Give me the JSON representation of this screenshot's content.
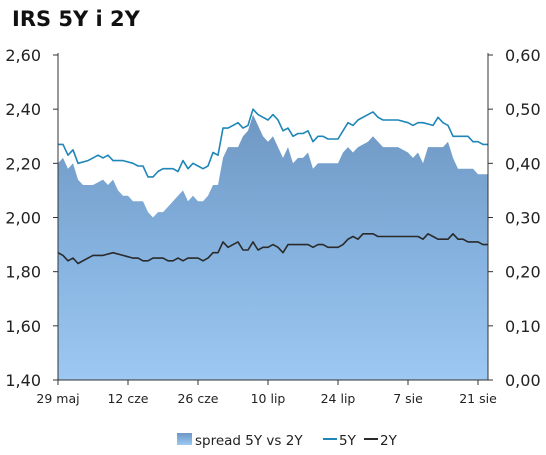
{
  "chart_data": {
    "type": "area",
    "title": "IRS 5Y i 2Y",
    "x_tick_labels": [
      "29 maj",
      "12 cze",
      "26 cze",
      "10 lip",
      "24 lip",
      "7 sie",
      "21 sie"
    ],
    "x_tick_dates": [
      "2013-05-29",
      "2013-06-12",
      "2013-06-26",
      "2013-07-10",
      "2013-07-24",
      "2013-08-07",
      "2013-08-21"
    ],
    "y_left": {
      "ylim": [
        1.4,
        2.6
      ],
      "ticks": [
        "1,40",
        "1,60",
        "1,80",
        "2,00",
        "2,20",
        "2,40",
        "2,60"
      ]
    },
    "y_right": {
      "ylim": [
        0.0,
        0.6
      ],
      "ticks": [
        "0,00",
        "0,10",
        "0,20",
        "0,30",
        "0,40",
        "0,50",
        "0,60"
      ]
    },
    "legend": [
      "spread 5Y vs 2Y",
      "5Y",
      "2Y"
    ],
    "legend_position": "bottom",
    "colors": {
      "spread_fill": "#6f97c3",
      "spread_fill_light": "#9dc8f2",
      "five_y": "#1f86b8",
      "two_y": "#2a2a2a"
    },
    "series": [
      {
        "name": "5Y",
        "axis": "left",
        "values": [
          [
            "2013-05-29",
            2.27
          ],
          [
            "2013-05-30",
            2.27
          ],
          [
            "2013-05-31",
            2.23
          ],
          [
            "2013-06-01",
            2.25
          ],
          [
            "2013-06-02",
            2.2
          ],
          [
            "2013-06-04",
            2.21
          ],
          [
            "2013-06-05",
            2.22
          ],
          [
            "2013-06-06",
            2.23
          ],
          [
            "2013-06-07",
            2.22
          ],
          [
            "2013-06-08",
            2.23
          ],
          [
            "2013-06-09",
            2.21
          ],
          [
            "2013-06-10",
            2.21
          ],
          [
            "2013-06-11",
            2.21
          ],
          [
            "2013-06-13",
            2.2
          ],
          [
            "2013-06-14",
            2.19
          ],
          [
            "2013-06-15",
            2.19
          ],
          [
            "2013-06-16",
            2.15
          ],
          [
            "2013-06-17",
            2.15
          ],
          [
            "2013-06-18",
            2.17
          ],
          [
            "2013-06-19",
            2.18
          ],
          [
            "2013-06-20",
            2.18
          ],
          [
            "2013-06-21",
            2.18
          ],
          [
            "2013-06-22",
            2.17
          ],
          [
            "2013-06-23",
            2.21
          ],
          [
            "2013-06-24",
            2.18
          ],
          [
            "2013-06-25",
            2.2
          ],
          [
            "2013-06-26",
            2.19
          ],
          [
            "2013-06-27",
            2.18
          ],
          [
            "2013-06-28",
            2.19
          ],
          [
            "2013-06-29",
            2.24
          ],
          [
            "2013-06-30",
            2.23
          ],
          [
            "2013-07-01",
            2.33
          ],
          [
            "2013-07-02",
            2.33
          ],
          [
            "2013-07-03",
            2.34
          ],
          [
            "2013-07-04",
            2.35
          ],
          [
            "2013-07-05",
            2.33
          ],
          [
            "2013-07-06",
            2.34
          ],
          [
            "2013-07-07",
            2.4
          ],
          [
            "2013-07-08",
            2.38
          ],
          [
            "2013-07-09",
            2.37
          ],
          [
            "2013-07-10",
            2.36
          ],
          [
            "2013-07-11",
            2.38
          ],
          [
            "2013-07-12",
            2.36
          ],
          [
            "2013-07-13",
            2.32
          ],
          [
            "2013-07-14",
            2.33
          ],
          [
            "2013-07-15",
            2.3
          ],
          [
            "2013-07-16",
            2.31
          ],
          [
            "2013-07-17",
            2.31
          ],
          [
            "2013-07-18",
            2.32
          ],
          [
            "2013-07-19",
            2.28
          ],
          [
            "2013-07-20",
            2.3
          ],
          [
            "2013-07-21",
            2.3
          ],
          [
            "2013-07-22",
            2.29
          ],
          [
            "2013-07-23",
            2.29
          ],
          [
            "2013-07-24",
            2.29
          ],
          [
            "2013-07-25",
            2.32
          ],
          [
            "2013-07-26",
            2.35
          ],
          [
            "2013-07-27",
            2.34
          ],
          [
            "2013-07-28",
            2.36
          ],
          [
            "2013-07-30",
            2.38
          ],
          [
            "2013-07-31",
            2.39
          ],
          [
            "2013-08-01",
            2.37
          ],
          [
            "2013-08-02",
            2.36
          ],
          [
            "2013-08-03",
            2.36
          ],
          [
            "2013-08-05",
            2.36
          ],
          [
            "2013-08-07",
            2.35
          ],
          [
            "2013-08-08",
            2.34
          ],
          [
            "2013-08-09",
            2.35
          ],
          [
            "2013-08-10",
            2.35
          ],
          [
            "2013-08-12",
            2.34
          ],
          [
            "2013-08-13",
            2.37
          ],
          [
            "2013-08-14",
            2.35
          ],
          [
            "2013-08-15",
            2.34
          ],
          [
            "2013-08-16",
            2.3
          ],
          [
            "2013-08-18",
            2.3
          ],
          [
            "2013-08-19",
            2.3
          ],
          [
            "2013-08-20",
            2.28
          ],
          [
            "2013-08-21",
            2.28
          ],
          [
            "2013-08-22",
            2.27
          ],
          [
            "2013-08-23",
            2.27
          ]
        ]
      },
      {
        "name": "2Y",
        "axis": "left",
        "values": [
          [
            "2013-05-29",
            1.87
          ],
          [
            "2013-05-30",
            1.86
          ],
          [
            "2013-05-31",
            1.84
          ],
          [
            "2013-06-01",
            1.85
          ],
          [
            "2013-06-02",
            1.83
          ],
          [
            "2013-06-04",
            1.85
          ],
          [
            "2013-06-05",
            1.86
          ],
          [
            "2013-06-06",
            1.86
          ],
          [
            "2013-06-07",
            1.86
          ],
          [
            "2013-06-09",
            1.87
          ],
          [
            "2013-06-11",
            1.86
          ],
          [
            "2013-06-13",
            1.85
          ],
          [
            "2013-06-14",
            1.85
          ],
          [
            "2013-06-15",
            1.84
          ],
          [
            "2013-06-16",
            1.84
          ],
          [
            "2013-06-17",
            1.85
          ],
          [
            "2013-06-18",
            1.85
          ],
          [
            "2013-06-19",
            1.85
          ],
          [
            "2013-06-20",
            1.84
          ],
          [
            "2013-06-21",
            1.84
          ],
          [
            "2013-06-22",
            1.85
          ],
          [
            "2013-06-23",
            1.84
          ],
          [
            "2013-06-24",
            1.85
          ],
          [
            "2013-06-25",
            1.85
          ],
          [
            "2013-06-26",
            1.85
          ],
          [
            "2013-06-27",
            1.84
          ],
          [
            "2013-06-28",
            1.85
          ],
          [
            "2013-06-29",
            1.87
          ],
          [
            "2013-06-30",
            1.87
          ],
          [
            "2013-07-01",
            1.91
          ],
          [
            "2013-07-02",
            1.89
          ],
          [
            "2013-07-03",
            1.9
          ],
          [
            "2013-07-04",
            1.91
          ],
          [
            "2013-07-05",
            1.88
          ],
          [
            "2013-07-06",
            1.88
          ],
          [
            "2013-07-07",
            1.91
          ],
          [
            "2013-07-08",
            1.88
          ],
          [
            "2013-07-09",
            1.89
          ],
          [
            "2013-07-10",
            1.89
          ],
          [
            "2013-07-11",
            1.9
          ],
          [
            "2013-07-12",
            1.89
          ],
          [
            "2013-07-13",
            1.87
          ],
          [
            "2013-07-14",
            1.9
          ],
          [
            "2013-07-15",
            1.9
          ],
          [
            "2013-07-16",
            1.9
          ],
          [
            "2013-07-17",
            1.9
          ],
          [
            "2013-07-18",
            1.9
          ],
          [
            "2013-07-19",
            1.89
          ],
          [
            "2013-07-20",
            1.9
          ],
          [
            "2013-07-21",
            1.9
          ],
          [
            "2013-07-22",
            1.89
          ],
          [
            "2013-07-23",
            1.89
          ],
          [
            "2013-07-24",
            1.89
          ],
          [
            "2013-07-25",
            1.9
          ],
          [
            "2013-07-26",
            1.92
          ],
          [
            "2013-07-27",
            1.93
          ],
          [
            "2013-07-28",
            1.92
          ],
          [
            "2013-07-29",
            1.94
          ],
          [
            "2013-07-31",
            1.94
          ],
          [
            "2013-08-01",
            1.93
          ],
          [
            "2013-08-02",
            1.93
          ],
          [
            "2013-08-05",
            1.93
          ],
          [
            "2013-08-07",
            1.93
          ],
          [
            "2013-08-08",
            1.93
          ],
          [
            "2013-08-09",
            1.93
          ],
          [
            "2013-08-10",
            1.92
          ],
          [
            "2013-08-11",
            1.94
          ],
          [
            "2013-08-12",
            1.93
          ],
          [
            "2013-08-13",
            1.92
          ],
          [
            "2013-08-14",
            1.92
          ],
          [
            "2013-08-15",
            1.92
          ],
          [
            "2013-08-16",
            1.94
          ],
          [
            "2013-08-17",
            1.92
          ],
          [
            "2013-08-18",
            1.92
          ],
          [
            "2013-08-19",
            1.91
          ],
          [
            "2013-08-20",
            1.91
          ],
          [
            "2013-08-21",
            1.91
          ],
          [
            "2013-08-22",
            1.9
          ],
          [
            "2013-08-23",
            1.9
          ]
        ]
      },
      {
        "name": "spread 5Y vs 2Y",
        "axis": "right",
        "values": [
          [
            "2013-05-29",
            0.4
          ],
          [
            "2013-05-30",
            0.41
          ],
          [
            "2013-05-31",
            0.39
          ],
          [
            "2013-06-01",
            0.4
          ],
          [
            "2013-06-02",
            0.37
          ],
          [
            "2013-06-03",
            0.36
          ],
          [
            "2013-06-05",
            0.36
          ],
          [
            "2013-06-07",
            0.37
          ],
          [
            "2013-06-08",
            0.36
          ],
          [
            "2013-06-09",
            0.37
          ],
          [
            "2013-06-10",
            0.35
          ],
          [
            "2013-06-11",
            0.34
          ],
          [
            "2013-06-12",
            0.34
          ],
          [
            "2013-06-13",
            0.33
          ],
          [
            "2013-06-14",
            0.33
          ],
          [
            "2013-06-15",
            0.33
          ],
          [
            "2013-06-16",
            0.31
          ],
          [
            "2013-06-17",
            0.3
          ],
          [
            "2013-06-18",
            0.31
          ],
          [
            "2013-06-19",
            0.31
          ],
          [
            "2013-06-20",
            0.32
          ],
          [
            "2013-06-21",
            0.33
          ],
          [
            "2013-06-22",
            0.34
          ],
          [
            "2013-06-23",
            0.35
          ],
          [
            "2013-06-24",
            0.33
          ],
          [
            "2013-06-25",
            0.34
          ],
          [
            "2013-06-26",
            0.33
          ],
          [
            "2013-06-27",
            0.33
          ],
          [
            "2013-06-28",
            0.34
          ],
          [
            "2013-06-29",
            0.36
          ],
          [
            "2013-06-30",
            0.36
          ],
          [
            "2013-07-01",
            0.41
          ],
          [
            "2013-07-02",
            0.43
          ],
          [
            "2013-07-04",
            0.43
          ],
          [
            "2013-07-05",
            0.45
          ],
          [
            "2013-07-06",
            0.46
          ],
          [
            "2013-07-07",
            0.49
          ],
          [
            "2013-07-08",
            0.47
          ],
          [
            "2013-07-09",
            0.45
          ],
          [
            "2013-07-10",
            0.44
          ],
          [
            "2013-07-11",
            0.45
          ],
          [
            "2013-07-12",
            0.43
          ],
          [
            "2013-07-13",
            0.41
          ],
          [
            "2013-07-14",
            0.43
          ],
          [
            "2013-07-15",
            0.4
          ],
          [
            "2013-07-16",
            0.41
          ],
          [
            "2013-07-17",
            0.41
          ],
          [
            "2013-07-18",
            0.42
          ],
          [
            "2013-07-19",
            0.39
          ],
          [
            "2013-07-20",
            0.4
          ],
          [
            "2013-07-21",
            0.4
          ],
          [
            "2013-07-22",
            0.4
          ],
          [
            "2013-07-23",
            0.4
          ],
          [
            "2013-07-24",
            0.4
          ],
          [
            "2013-07-25",
            0.42
          ],
          [
            "2013-07-26",
            0.43
          ],
          [
            "2013-07-27",
            0.42
          ],
          [
            "2013-07-28",
            0.43
          ],
          [
            "2013-07-30",
            0.44
          ],
          [
            "2013-07-31",
            0.45
          ],
          [
            "2013-08-01",
            0.44
          ],
          [
            "2013-08-02",
            0.43
          ],
          [
            "2013-08-03",
            0.43
          ],
          [
            "2013-08-05",
            0.43
          ],
          [
            "2013-08-07",
            0.42
          ],
          [
            "2013-08-08",
            0.41
          ],
          [
            "2013-08-09",
            0.42
          ],
          [
            "2013-08-10",
            0.4
          ],
          [
            "2013-08-11",
            0.43
          ],
          [
            "2013-08-12",
            0.43
          ],
          [
            "2013-08-13",
            0.43
          ],
          [
            "2013-08-14",
            0.43
          ],
          [
            "2013-08-15",
            0.44
          ],
          [
            "2013-08-16",
            0.41
          ],
          [
            "2013-08-17",
            0.39
          ],
          [
            "2013-08-18",
            0.39
          ],
          [
            "2013-08-19",
            0.39
          ],
          [
            "2013-08-20",
            0.39
          ],
          [
            "2013-08-21",
            0.38
          ],
          [
            "2013-08-22",
            0.38
          ],
          [
            "2013-08-23",
            0.38
          ]
        ]
      }
    ],
    "grid": false
  }
}
